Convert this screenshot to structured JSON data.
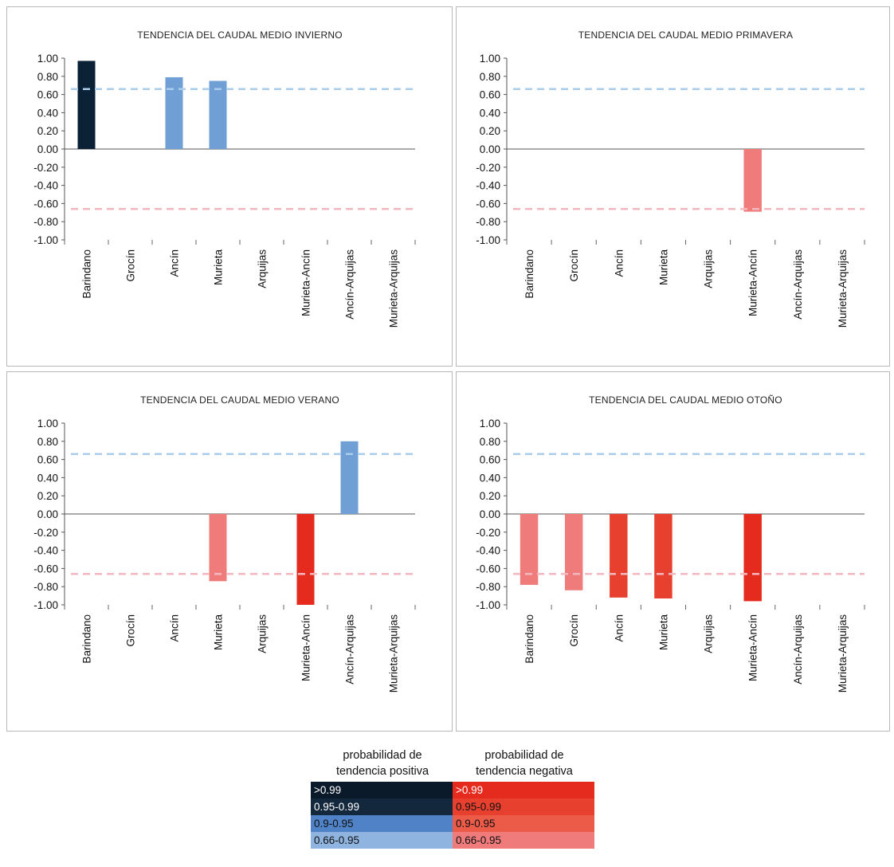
{
  "chart_data": [
    {
      "type": "bar",
      "title": "TENDENCIA DEL CAUDAL MEDIO INVIERNO",
      "categories": [
        "Barindano",
        "Grocín",
        "Ancín",
        "Murieta",
        "Arquijas",
        "Murieta-Ancín",
        "Ancín-Arquijas",
        "Murieta-Arquijas"
      ],
      "values": [
        0.97,
        0,
        0.79,
        0.75,
        0,
        0,
        0,
        0
      ],
      "bar_colors": [
        "#0b2236",
        null,
        "#6f9fd4",
        "#6f9fd4",
        null,
        null,
        null,
        null
      ],
      "ylim": [
        -1.0,
        1.0
      ],
      "yticks": [
        "1.00",
        "0.80",
        "0.60",
        "0.40",
        "0.20",
        "0.00",
        "-0.20",
        "-0.40",
        "-0.60",
        "-0.80",
        "-1.00"
      ],
      "reference_lines": [
        0.66,
        -0.66
      ],
      "reference_colors": [
        "#a9cdea",
        "#f3b8bf"
      ]
    },
    {
      "type": "bar",
      "title": "TENDENCIA DEL CAUDAL MEDIO PRIMAVERA",
      "categories": [
        "Barindano",
        "Grocín",
        "Ancín",
        "Murieta",
        "Arquijas",
        "Murieta-Ancín",
        "Ancín-Arquijas",
        "Murieta-Arquijas"
      ],
      "values": [
        0,
        0,
        0,
        0,
        0,
        -0.69,
        0,
        0
      ],
      "bar_colors": [
        null,
        null,
        null,
        null,
        null,
        "#ef7b7b",
        null,
        null
      ],
      "ylim": [
        -1.0,
        1.0
      ],
      "yticks": [
        "1.00",
        "0.80",
        "0.60",
        "0.40",
        "0.20",
        "0.00",
        "-0.20",
        "-0.40",
        "-0.60",
        "-0.80",
        "-1.00"
      ],
      "reference_lines": [
        0.66,
        -0.66
      ],
      "reference_colors": [
        "#a9cdea",
        "#f3b8bf"
      ]
    },
    {
      "type": "bar",
      "title": "TENDENCIA DEL CAUDAL MEDIO VERANO",
      "categories": [
        "Barindano",
        "Grocín",
        "Ancín",
        "Murieta",
        "Arquijas",
        "Murieta-Ancín",
        "Ancín-Arquijas",
        "Murieta-Arquijas"
      ],
      "values": [
        0,
        0,
        0,
        -0.74,
        0,
        -1.0,
        0.8,
        0
      ],
      "bar_colors": [
        null,
        null,
        null,
        "#ef7b7b",
        null,
        "#e52a1e",
        "#6f9fd4",
        null
      ],
      "ylim": [
        -1.0,
        1.0
      ],
      "yticks": [
        "1.00",
        "0.80",
        "0.60",
        "0.40",
        "0.20",
        "0.00",
        "-0.20",
        "-0.40",
        "-0.60",
        "-0.80",
        "-1.00"
      ],
      "reference_lines": [
        0.66,
        -0.66
      ],
      "reference_colors": [
        "#a9cdea",
        "#f3b8bf"
      ]
    },
    {
      "type": "bar",
      "title": "TENDENCIA DEL CAUDAL MEDIO OTOÑO",
      "categories": [
        "Barindano",
        "Grocín",
        "Ancín",
        "Murieta",
        "Arquijas",
        "Murieta-Ancín",
        "Ancín-Arquijas",
        "Murieta-Arquijas"
      ],
      "values": [
        -0.78,
        -0.84,
        -0.92,
        -0.93,
        0,
        -0.96,
        0,
        0
      ],
      "bar_colors": [
        "#ef7b7b",
        "#ef7b7b",
        "#e8402e",
        "#e8402e",
        null,
        "#e52a1e",
        null,
        null
      ],
      "ylim": [
        -1.0,
        1.0
      ],
      "yticks": [
        "1.00",
        "0.80",
        "0.60",
        "0.40",
        "0.20",
        "0.00",
        "-0.20",
        "-0.40",
        "-0.60",
        "-0.80",
        "-1.00"
      ],
      "reference_lines": [
        0.66,
        -0.66
      ],
      "reference_colors": [
        "#a9cdea",
        "#f3b8bf"
      ]
    }
  ],
  "legend": {
    "positive_title_line1": "probabilidad de",
    "positive_title_line2": "tendencia positiva",
    "negative_title_line1": "probabilidad de",
    "negative_title_line2": "tendencia negativa",
    "positive_rows": [
      {
        "label": ">0.99",
        "color": "#0b1a2b",
        "text_color": "#ffffff"
      },
      {
        "label": "0.95-0.99",
        "color": "#13283d",
        "text_color": "#ffffff"
      },
      {
        "label": "0.9-0.95",
        "color": "#4f82c6",
        "text_color": "#111111"
      },
      {
        "label": "0.66-0.95",
        "color": "#8fb4df",
        "text_color": "#111111"
      }
    ],
    "negative_rows": [
      {
        "label": ">0.99",
        "color": "#e52a1e",
        "text_color": "#ffffff"
      },
      {
        "label": "0.95-0.99",
        "color": "#e8402e",
        "text_color": "#111111"
      },
      {
        "label": "0.9-0.95",
        "color": "#ec5a48",
        "text_color": "#111111"
      },
      {
        "label": "0.66-0.95",
        "color": "#ef7b7b",
        "text_color": "#111111"
      }
    ]
  }
}
